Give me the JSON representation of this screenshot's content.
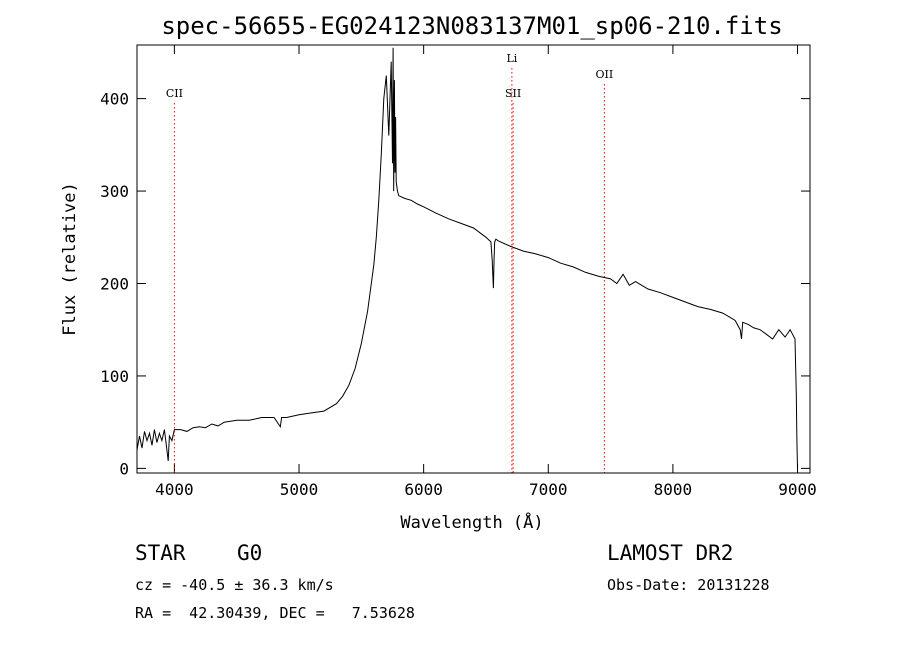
{
  "chart_data": {
    "type": "line",
    "title": "spec-56655-EG024123N083137M01_sp06-210.fits",
    "xlabel": "Wavelength (Å)",
    "ylabel": "Flux (relative)",
    "xlim": [
      3700,
      9100
    ],
    "ylim": [
      -5,
      458
    ],
    "x_ticks": [
      4000,
      5000,
      6000,
      7000,
      8000,
      9000
    ],
    "y_ticks": [
      0,
      100,
      200,
      300,
      400
    ],
    "grid": false,
    "line_color": "#000000",
    "marker_color": "#ff0000",
    "series": [
      {
        "x": [
          3700,
          3720,
          3740,
          3760,
          3780,
          3800,
          3820,
          3840,
          3860,
          3880,
          3900,
          3920,
          3940,
          3950,
          3960,
          3980,
          4000,
          4050,
          4100,
          4150,
          4200,
          4250,
          4300,
          4350,
          4400,
          4500,
          4600,
          4700,
          4800,
          4850,
          4860,
          4900,
          5000,
          5100,
          5200,
          5300,
          5350,
          5400,
          5450,
          5500,
          5550,
          5600,
          5620,
          5640,
          5660,
          5680,
          5700,
          5720,
          5740,
          5750,
          5755,
          5760,
          5765,
          5770,
          5775,
          5780,
          5790,
          5800,
          5850,
          5900,
          5950,
          6000,
          6100,
          6200,
          6300,
          6400,
          6500,
          6540,
          6550,
          6560,
          6565,
          6570,
          6580,
          6600,
          6700,
          6800,
          6900,
          7000,
          7100,
          7200,
          7300,
          7400,
          7500,
          7550,
          7600,
          7650,
          7700,
          7800,
          7900,
          8000,
          8100,
          8200,
          8300,
          8400,
          8500,
          8540,
          8550,
          8560,
          8600,
          8650,
          8700,
          8750,
          8800,
          8850,
          8900,
          8940,
          8960,
          8980,
          8990,
          8995,
          9000
        ],
        "y": [
          20,
          35,
          22,
          40,
          30,
          38,
          25,
          42,
          28,
          38,
          30,
          42,
          20,
          8,
          35,
          30,
          42,
          42,
          40,
          44,
          45,
          44,
          48,
          46,
          50,
          52,
          52,
          55,
          55,
          45,
          55,
          55,
          58,
          60,
          62,
          70,
          78,
          90,
          108,
          135,
          170,
          220,
          250,
          290,
          340,
          400,
          425,
          360,
          440,
          330,
          455,
          300,
          420,
          320,
          380,
          310,
          300,
          295,
          292,
          290,
          286,
          283,
          276,
          270,
          265,
          260,
          250,
          245,
          225,
          195,
          228,
          245,
          248,
          246,
          240,
          235,
          232,
          228,
          222,
          218,
          212,
          208,
          205,
          200,
          210,
          198,
          202,
          194,
          190,
          185,
          180,
          175,
          172,
          168,
          160,
          150,
          140,
          158,
          156,
          152,
          150,
          145,
          140,
          150,
          142,
          150,
          145,
          140,
          80,
          30,
          0
        ]
      }
    ],
    "line_markers": [
      {
        "label": "CII",
        "x": 4000
      },
      {
        "label": "Li",
        "x": 6708
      },
      {
        "label": "SII",
        "x": 6718
      },
      {
        "label": "OII",
        "x": 7450
      }
    ]
  },
  "info": {
    "class_label": "STAR",
    "subclass": "G0",
    "survey": "LAMOST DR2",
    "velocity": "cz = -40.5 ± 36.3 km/s",
    "obs_date": "Obs-Date: 20131228",
    "coords": "RA =  42.30439, DEC =   7.53628"
  }
}
